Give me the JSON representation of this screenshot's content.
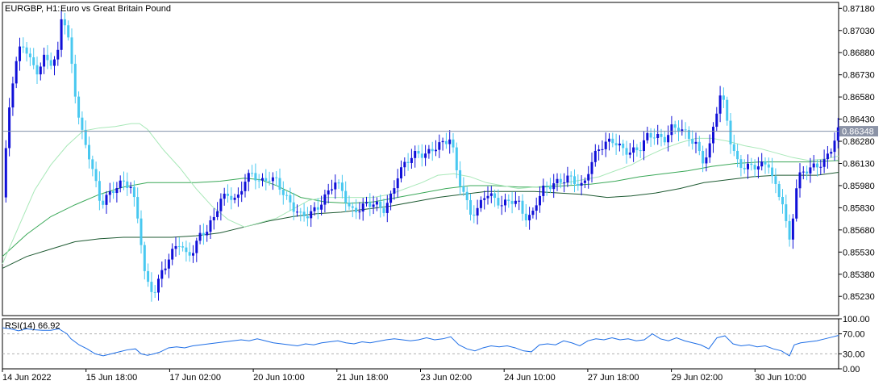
{
  "header": {
    "symbol": "EURGBP, H1:",
    "description": "Euro vs Great Britain Pound"
  },
  "colors": {
    "bull": "#1010d8",
    "bear": "#48c8f0",
    "ma_fast": "#a8e8b8",
    "ma_mid": "#3aa858",
    "ma_slow": "#1e5a32",
    "rsi": "#1e6ee6",
    "price_line": "#8090a8",
    "price_tag": "#8b93a6"
  },
  "chart_data": [
    {
      "type": "candlestick",
      "title": "EURGBP, H1:  Euro vs Great Britain Pound",
      "ylim": [
        0.851,
        0.8722
      ],
      "y_ticks": [
        "0.87180",
        "0.87030",
        "0.86880",
        "0.86730",
        "0.86580",
        "0.86430",
        "0.86280",
        "0.86130",
        "0.85980",
        "0.85830",
        "0.85680",
        "0.85530",
        "0.85380",
        "0.85230"
      ],
      "x_ticks": [
        "14 Jun 2022",
        "15 Jun 18:00",
        "17 Jun 02:00",
        "20 Jun 10:00",
        "21 Jun 18:00",
        "23 Jun 02:00",
        "24 Jun 10:00",
        "27 Jun 18:00",
        "29 Jun 02:00",
        "30 Jun 10:00"
      ],
      "current_price": "0.86348",
      "close_path": [
        [
          0,
          0.859
        ],
        [
          4,
          0.8618
        ],
        [
          10,
          0.866
        ],
        [
          18,
          0.8682
        ],
        [
          24,
          0.8695
        ],
        [
          30,
          0.869
        ],
        [
          36,
          0.8682
        ],
        [
          44,
          0.8676
        ],
        [
          52,
          0.8684
        ],
        [
          60,
          0.868
        ],
        [
          68,
          0.8682
        ],
        [
          73,
          0.8712
        ],
        [
          79,
          0.8708
        ],
        [
          85,
          0.8685
        ],
        [
          93,
          0.865
        ],
        [
          100,
          0.863
        ],
        [
          107,
          0.8618
        ],
        [
          115,
          0.86
        ],
        [
          122,
          0.8585
        ],
        [
          130,
          0.8592
        ],
        [
          140,
          0.8598
        ],
        [
          150,
          0.86
        ],
        [
          160,
          0.8595
        ],
        [
          170,
          0.857
        ],
        [
          176,
          0.854
        ],
        [
          182,
          0.853
        ],
        [
          190,
          0.8528
        ],
        [
          198,
          0.854
        ],
        [
          208,
          0.8548
        ],
        [
          218,
          0.856
        ],
        [
          228,
          0.8552
        ],
        [
          238,
          0.8556
        ],
        [
          246,
          0.8566
        ],
        [
          254,
          0.8566
        ],
        [
          262,
          0.8575
        ],
        [
          270,
          0.8588
        ],
        [
          280,
          0.8594
        ],
        [
          290,
          0.8588
        ],
        [
          300,
          0.86
        ],
        [
          310,
          0.8605
        ],
        [
          320,
          0.86
        ],
        [
          330,
          0.8605
        ],
        [
          340,
          0.8602
        ],
        [
          350,
          0.859
        ],
        [
          360,
          0.8582
        ],
        [
          370,
          0.8578
        ],
        [
          380,
          0.858
        ],
        [
          392,
          0.8584
        ],
        [
          402,
          0.859
        ],
        [
          412,
          0.86
        ],
        [
          422,
          0.8595
        ],
        [
          432,
          0.8582
        ],
        [
          442,
          0.8582
        ],
        [
          452,
          0.8584
        ],
        [
          462,
          0.8585
        ],
        [
          472,
          0.8582
        ],
        [
          482,
          0.8592
        ],
        [
          490,
          0.8605
        ],
        [
          500,
          0.8612
        ],
        [
          510,
          0.8618
        ],
        [
          520,
          0.862
        ],
        [
          530,
          0.8622
        ],
        [
          540,
          0.8626
        ],
        [
          548,
          0.8625
        ],
        [
          556,
          0.863
        ],
        [
          564,
          0.8605
        ],
        [
          572,
          0.8595
        ],
        [
          580,
          0.858
        ],
        [
          590,
          0.8582
        ],
        [
          600,
          0.8592
        ],
        [
          610,
          0.8588
        ],
        [
          620,
          0.8586
        ],
        [
          630,
          0.859
        ],
        [
          640,
          0.8586
        ],
        [
          648,
          0.8575
        ],
        [
          656,
          0.8575
        ],
        [
          664,
          0.859
        ],
        [
          672,
          0.8598
        ],
        [
          682,
          0.86
        ],
        [
          692,
          0.86
        ],
        [
          702,
          0.8602
        ],
        [
          712,
          0.86
        ],
        [
          720,
          0.8598
        ],
        [
          728,
          0.8612
        ],
        [
          738,
          0.8622
        ],
        [
          748,
          0.8625
        ],
        [
          758,
          0.8628
        ],
        [
          768,
          0.8624
        ],
        [
          778,
          0.8622
        ],
        [
          790,
          0.8622
        ],
        [
          800,
          0.863
        ],
        [
          810,
          0.8632
        ],
        [
          820,
          0.863
        ],
        [
          830,
          0.8638
        ],
        [
          840,
          0.8636
        ],
        [
          850,
          0.863
        ],
        [
          860,
          0.8626
        ],
        [
          868,
          0.8616
        ],
        [
          876,
          0.8622
        ],
        [
          884,
          0.8645
        ],
        [
          890,
          0.8658
        ],
        [
          896,
          0.865
        ],
        [
          904,
          0.8624
        ],
        [
          912,
          0.8614
        ],
        [
          920,
          0.8612
        ],
        [
          930,
          0.8612
        ],
        [
          940,
          0.861
        ],
        [
          950,
          0.8612
        ],
        [
          956,
          0.86
        ],
        [
          962,
          0.8594
        ],
        [
          968,
          0.8588
        ],
        [
          974,
          0.8565
        ],
        [
          978,
          0.8558
        ],
        [
          982,
          0.8592
        ],
        [
          990,
          0.8605
        ],
        [
          1000,
          0.8608
        ],
        [
          1010,
          0.8612
        ],
        [
          1020,
          0.8616
        ],
        [
          1028,
          0.8624
        ],
        [
          1034,
          0.8632
        ],
        [
          1037,
          0.86348
        ]
      ],
      "ma_fast_path": [
        [
          0,
          0.8545
        ],
        [
          20,
          0.857
        ],
        [
          40,
          0.8595
        ],
        [
          60,
          0.8612
        ],
        [
          80,
          0.8625
        ],
        [
          100,
          0.8635
        ],
        [
          120,
          0.8637
        ],
        [
          140,
          0.8638
        ],
        [
          160,
          0.864
        ],
        [
          170,
          0.864
        ],
        [
          180,
          0.8636
        ],
        [
          200,
          0.8622
        ],
        [
          220,
          0.861
        ],
        [
          240,
          0.8596
        ],
        [
          260,
          0.8584
        ],
        [
          280,
          0.8575
        ],
        [
          300,
          0.857
        ],
        [
          320,
          0.8573
        ],
        [
          340,
          0.8576
        ],
        [
          360,
          0.8582
        ],
        [
          380,
          0.8588
        ],
        [
          400,
          0.859
        ],
        [
          420,
          0.859
        ],
        [
          440,
          0.859
        ],
        [
          460,
          0.859
        ],
        [
          480,
          0.8592
        ],
        [
          500,
          0.8596
        ],
        [
          520,
          0.86
        ],
        [
          540,
          0.8605
        ],
        [
          560,
          0.8606
        ],
        [
          580,
          0.8604
        ],
        [
          600,
          0.86
        ],
        [
          620,
          0.8598
        ],
        [
          640,
          0.8596
        ],
        [
          660,
          0.8597
        ],
        [
          680,
          0.8598
        ],
        [
          700,
          0.86
        ],
        [
          720,
          0.8602
        ],
        [
          740,
          0.8604
        ],
        [
          760,
          0.8608
        ],
        [
          780,
          0.8612
        ],
        [
          800,
          0.8618
        ],
        [
          820,
          0.8623
        ],
        [
          840,
          0.8627
        ],
        [
          860,
          0.863
        ],
        [
          880,
          0.863
        ],
        [
          900,
          0.8628
        ],
        [
          920,
          0.8625
        ],
        [
          940,
          0.8623
        ],
        [
          960,
          0.862
        ],
        [
          980,
          0.8617
        ],
        [
          1000,
          0.8615
        ],
        [
          1020,
          0.8616
        ],
        [
          1037,
          0.8618
        ]
      ],
      "ma_mid_path": [
        [
          0,
          0.855
        ],
        [
          30,
          0.8565
        ],
        [
          60,
          0.8577
        ],
        [
          90,
          0.8585
        ],
        [
          120,
          0.8592
        ],
        [
          150,
          0.8597
        ],
        [
          180,
          0.86
        ],
        [
          210,
          0.86
        ],
        [
          240,
          0.86
        ],
        [
          270,
          0.8601
        ],
        [
          300,
          0.8603
        ],
        [
          320,
          0.8602
        ],
        [
          340,
          0.8598
        ],
        [
          370,
          0.859
        ],
        [
          400,
          0.8587
        ],
        [
          430,
          0.8586
        ],
        [
          460,
          0.8587
        ],
        [
          490,
          0.859
        ],
        [
          520,
          0.8593
        ],
        [
          550,
          0.8596
        ],
        [
          580,
          0.8598
        ],
        [
          610,
          0.8598
        ],
        [
          640,
          0.8597
        ],
        [
          670,
          0.8597
        ],
        [
          700,
          0.8598
        ],
        [
          730,
          0.8599
        ],
        [
          760,
          0.8601
        ],
        [
          790,
          0.8604
        ],
        [
          820,
          0.8606
        ],
        [
          850,
          0.8608
        ],
        [
          880,
          0.8611
        ],
        [
          910,
          0.8613
        ],
        [
          940,
          0.8614
        ],
        [
          970,
          0.8614
        ],
        [
          1000,
          0.8614
        ],
        [
          1037,
          0.8615
        ]
      ],
      "ma_slow_path": [
        [
          0,
          0.8542
        ],
        [
          30,
          0.855
        ],
        [
          60,
          0.8555
        ],
        [
          90,
          0.856
        ],
        [
          120,
          0.8562
        ],
        [
          150,
          0.8563
        ],
        [
          180,
          0.8563
        ],
        [
          210,
          0.8563
        ],
        [
          240,
          0.8564
        ],
        [
          270,
          0.8566
        ],
        [
          300,
          0.857
        ],
        [
          330,
          0.8574
        ],
        [
          360,
          0.8577
        ],
        [
          390,
          0.8579
        ],
        [
          420,
          0.858
        ],
        [
          450,
          0.8582
        ],
        [
          480,
          0.8584
        ],
        [
          510,
          0.8587
        ],
        [
          540,
          0.859
        ],
        [
          570,
          0.8592
        ],
        [
          600,
          0.8594
        ],
        [
          630,
          0.8594
        ],
        [
          660,
          0.8594
        ],
        [
          690,
          0.8593
        ],
        [
          720,
          0.8592
        ],
        [
          750,
          0.859
        ],
        [
          780,
          0.8591
        ],
        [
          810,
          0.8593
        ],
        [
          840,
          0.8596
        ],
        [
          870,
          0.86
        ],
        [
          900,
          0.8602
        ],
        [
          930,
          0.8604
        ],
        [
          960,
          0.8605
        ],
        [
          990,
          0.8605
        ],
        [
          1010,
          0.8605
        ],
        [
          1037,
          0.8607
        ]
      ]
    },
    {
      "type": "line",
      "title": "RSI(14) 66.92",
      "ylim": [
        0,
        100
      ],
      "y_ticks": [
        "100.00",
        "70.00",
        "30.00",
        "0.00"
      ],
      "levels": [
        70,
        30
      ],
      "rsi_path": [
        [
          0,
          82
        ],
        [
          10,
          80
        ],
        [
          20,
          76
        ],
        [
          30,
          80
        ],
        [
          40,
          78
        ],
        [
          50,
          77
        ],
        [
          60,
          77
        ],
        [
          70,
          80
        ],
        [
          76,
          74
        ],
        [
          80,
          70
        ],
        [
          85,
          60
        ],
        [
          95,
          48
        ],
        [
          105,
          40
        ],
        [
          115,
          30
        ],
        [
          125,
          26
        ],
        [
          135,
          30
        ],
        [
          145,
          34
        ],
        [
          155,
          38
        ],
        [
          165,
          40
        ],
        [
          172,
          30
        ],
        [
          180,
          27
        ],
        [
          188,
          30
        ],
        [
          196,
          34
        ],
        [
          206,
          42
        ],
        [
          216,
          44
        ],
        [
          226,
          42
        ],
        [
          236,
          46
        ],
        [
          246,
          48
        ],
        [
          256,
          50
        ],
        [
          266,
          52
        ],
        [
          276,
          54
        ],
        [
          286,
          56
        ],
        [
          296,
          58
        ],
        [
          306,
          56
        ],
        [
          316,
          60
        ],
        [
          326,
          56
        ],
        [
          336,
          52
        ],
        [
          346,
          50
        ],
        [
          356,
          48
        ],
        [
          366,
          46
        ],
        [
          376,
          50
        ],
        [
          386,
          48
        ],
        [
          396,
          52
        ],
        [
          406,
          54
        ],
        [
          416,
          56
        ],
        [
          426,
          52
        ],
        [
          436,
          50
        ],
        [
          446,
          54
        ],
        [
          456,
          52
        ],
        [
          466,
          55
        ],
        [
          476,
          58
        ],
        [
          486,
          60
        ],
        [
          496,
          58
        ],
        [
          506,
          56
        ],
        [
          516,
          58
        ],
        [
          526,
          62
        ],
        [
          536,
          58
        ],
        [
          546,
          60
        ],
        [
          556,
          64
        ],
        [
          566,
          48
        ],
        [
          576,
          40
        ],
        [
          586,
          36
        ],
        [
          596,
          42
        ],
        [
          606,
          46
        ],
        [
          616,
          44
        ],
        [
          626,
          46
        ],
        [
          636,
          42
        ],
        [
          646,
          36
        ],
        [
          656,
          34
        ],
        [
          666,
          48
        ],
        [
          676,
          50
        ],
        [
          686,
          48
        ],
        [
          696,
          56
        ],
        [
          706,
          52
        ],
        [
          716,
          46
        ],
        [
          726,
          56
        ],
        [
          736,
          60
        ],
        [
          746,
          58
        ],
        [
          756,
          62
        ],
        [
          766,
          58
        ],
        [
          776,
          60
        ],
        [
          786,
          56
        ],
        [
          796,
          58
        ],
        [
          806,
          70
        ],
        [
          816,
          60
        ],
        [
          826,
          56
        ],
        [
          836,
          62
        ],
        [
          846,
          56
        ],
        [
          856,
          52
        ],
        [
          866,
          48
        ],
        [
          876,
          40
        ],
        [
          886,
          62
        ],
        [
          896,
          66
        ],
        [
          906,
          50
        ],
        [
          916,
          46
        ],
        [
          926,
          48
        ],
        [
          936,
          44
        ],
        [
          946,
          46
        ],
        [
          956,
          40
        ],
        [
          966,
          36
        ],
        [
          976,
          26
        ],
        [
          982,
          48
        ],
        [
          990,
          52
        ],
        [
          1000,
          54
        ],
        [
          1010,
          56
        ],
        [
          1020,
          60
        ],
        [
          1030,
          64
        ],
        [
          1037,
          66.92
        ]
      ]
    }
  ]
}
